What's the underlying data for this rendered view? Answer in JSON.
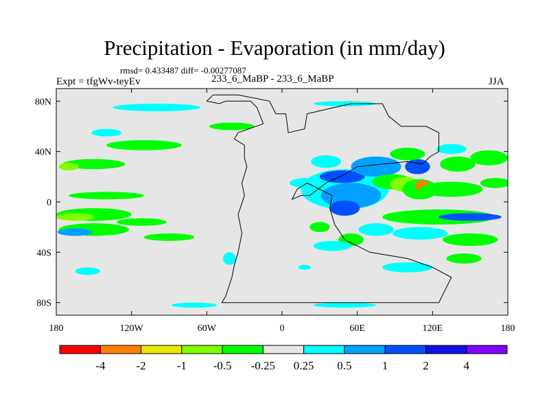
{
  "chart_data": {
    "type": "heatmap",
    "title": "Precipitation - Evaporation (in mm/day)",
    "stats_line": "rmsd= 0.433487 diff= -0.00277087",
    "left_label": "Expt = tfgWv-teyEv",
    "center_label": "233_6_MaBP - 233_6_MaBP",
    "right_label": "JJA",
    "x_range": [
      -180,
      180
    ],
    "y_range": [
      -90,
      90
    ],
    "x_ticks": [
      {
        "value": -180,
        "label": "180"
      },
      {
        "value": -120,
        "label": "120W"
      },
      {
        "value": -60,
        "label": "60W"
      },
      {
        "value": 0,
        "label": "0"
      },
      {
        "value": 60,
        "label": "60E"
      },
      {
        "value": 120,
        "label": "120E"
      },
      {
        "value": 180,
        "label": "180"
      }
    ],
    "y_ticks": [
      {
        "value": 80,
        "label": "80N"
      },
      {
        "value": 40,
        "label": "40N"
      },
      {
        "value": 0,
        "label": "0"
      },
      {
        "value": -40,
        "label": "40S"
      },
      {
        "value": -80,
        "label": "80S"
      }
    ],
    "background_color": "#e6e6e6",
    "colorbar": {
      "colors": [
        "#ff0000",
        "#ff8000",
        "#e6e600",
        "#80ff00",
        "#00ff00",
        "#e6e6e6",
        "#00ffff",
        "#00a0ff",
        "#0050ff",
        "#1010e0",
        "#8000ff"
      ],
      "labels": [
        "-4",
        "-2",
        "-1",
        "-0.5",
        "-0.25",
        "0.25",
        "0.5",
        "1",
        "2",
        "4"
      ]
    },
    "anomaly_regions": [
      {
        "lon": -150,
        "lat": -10,
        "rlon": 30,
        "rlat": 5,
        "color": "#00ff00"
      },
      {
        "lon": -165,
        "lat": -12,
        "rlon": 15,
        "rlat": 3,
        "color": "#80ff00"
      },
      {
        "lon": -150,
        "lat": -22,
        "rlon": 28,
        "rlat": 5,
        "color": "#00ff00"
      },
      {
        "lon": -165,
        "lat": -24,
        "rlon": 14,
        "rlat": 3,
        "color": "#00a0ff"
      },
      {
        "lon": -112,
        "lat": -16,
        "rlon": 20,
        "rlat": 3,
        "color": "#00ff00"
      },
      {
        "lon": -90,
        "lat": -28,
        "rlon": 20,
        "rlat": 3,
        "color": "#00ff00"
      },
      {
        "lon": -140,
        "lat": 5,
        "rlon": 30,
        "rlat": 3,
        "color": "#00ff00"
      },
      {
        "lon": -150,
        "lat": 30,
        "rlon": 25,
        "rlat": 4,
        "color": "#00ff00"
      },
      {
        "lon": -170,
        "lat": 28,
        "rlon": 8,
        "rlat": 3,
        "color": "#80ff00"
      },
      {
        "lon": -110,
        "lat": 45,
        "rlon": 30,
        "rlat": 4,
        "color": "#00ff00"
      },
      {
        "lon": -100,
        "lat": 75,
        "rlon": 35,
        "rlat": 3,
        "color": "#00ffff"
      },
      {
        "lon": -140,
        "lat": 55,
        "rlon": 12,
        "rlat": 3,
        "color": "#00ffff"
      },
      {
        "lon": -40,
        "lat": 60,
        "rlon": 18,
        "rlat": 3,
        "color": "#00ff00"
      },
      {
        "lon": 50,
        "lat": 78,
        "rlon": 25,
        "rlat": 2,
        "color": "#00ffff"
      },
      {
        "lon": -155,
        "lat": -55,
        "rlon": 10,
        "rlat": 3,
        "color": "#00ffff"
      },
      {
        "lon": -70,
        "lat": -82,
        "rlon": 18,
        "rlat": 2,
        "color": "#00ffff"
      },
      {
        "lon": 20,
        "lat": 15,
        "rlon": 14,
        "rlat": 4,
        "color": "#00ffff"
      },
      {
        "lon": 50,
        "lat": 10,
        "rlon": 35,
        "rlat": 16,
        "color": "#00ffff"
      },
      {
        "lon": 55,
        "lat": 5,
        "rlon": 24,
        "rlat": 10,
        "color": "#00a0ff"
      },
      {
        "lon": 50,
        "lat": -5,
        "rlon": 12,
        "rlat": 6,
        "color": "#0050ff"
      },
      {
        "lon": 48,
        "lat": 20,
        "rlon": 18,
        "rlat": 5,
        "color": "#0050ff"
      },
      {
        "lon": 35,
        "lat": 32,
        "rlon": 12,
        "rlat": 5,
        "color": "#00ffff"
      },
      {
        "lon": 75,
        "lat": 28,
        "rlon": 20,
        "rlat": 8,
        "color": "#00a0ff"
      },
      {
        "lon": 88,
        "lat": 16,
        "rlon": 16,
        "rlat": 6,
        "color": "#00ff00"
      },
      {
        "lon": 98,
        "lat": 14,
        "rlon": 12,
        "rlat": 6,
        "color": "#80ff00"
      },
      {
        "lon": 110,
        "lat": 10,
        "rlon": 14,
        "rlat": 8,
        "color": "#00ff00"
      },
      {
        "lon": 112,
        "lat": 13,
        "rlon": 6,
        "rlat": 4,
        "color": "#ff8000"
      },
      {
        "lon": 108,
        "lat": 28,
        "rlon": 10,
        "rlat": 6,
        "color": "#0050ff"
      },
      {
        "lon": 100,
        "lat": 38,
        "rlon": 14,
        "rlat": 5,
        "color": "#00ff00"
      },
      {
        "lon": 135,
        "lat": 10,
        "rlon": 25,
        "rlat": 6,
        "color": "#00ff00"
      },
      {
        "lon": 140,
        "lat": 30,
        "rlon": 14,
        "rlat": 6,
        "color": "#00ff00"
      },
      {
        "lon": 135,
        "lat": 42,
        "rlon": 12,
        "rlat": 4,
        "color": "#00ffff"
      },
      {
        "lon": 165,
        "lat": 35,
        "rlon": 15,
        "rlat": 6,
        "color": "#00ff00"
      },
      {
        "lon": 170,
        "lat": 15,
        "rlon": 12,
        "rlat": 4,
        "color": "#00ff00"
      },
      {
        "lon": 125,
        "lat": -12,
        "rlon": 45,
        "rlat": 6,
        "color": "#00ff00"
      },
      {
        "lon": 150,
        "lat": -12,
        "rlon": 25,
        "rlat": 3,
        "color": "#0050ff"
      },
      {
        "lon": 110,
        "lat": -25,
        "rlon": 22,
        "rlat": 5,
        "color": "#00ffff"
      },
      {
        "lon": 150,
        "lat": -30,
        "rlon": 22,
        "rlat": 5,
        "color": "#00ff00"
      },
      {
        "lon": 145,
        "lat": -45,
        "rlon": 14,
        "rlat": 4,
        "color": "#00ff00"
      },
      {
        "lon": 75,
        "lat": -22,
        "rlon": 14,
        "rlat": 5,
        "color": "#00ffff"
      },
      {
        "lon": 55,
        "lat": -30,
        "rlon": 10,
        "rlat": 5,
        "color": "#00ff00"
      },
      {
        "lon": 40,
        "lat": -35,
        "rlon": 15,
        "rlat": 4,
        "color": "#00ffff"
      },
      {
        "lon": 30,
        "lat": -20,
        "rlon": 8,
        "rlat": 4,
        "color": "#00ff00"
      },
      {
        "lon": 100,
        "lat": -52,
        "rlon": 20,
        "rlat": 4,
        "color": "#00ffff"
      },
      {
        "lon": 50,
        "lat": -82,
        "rlon": 25,
        "rlat": 2,
        "color": "#00ffff"
      },
      {
        "lon": -42,
        "lat": -45,
        "rlon": 5,
        "rlat": 5,
        "color": "#00ffff"
      },
      {
        "lon": 18,
        "lat": -52,
        "rlon": 5,
        "rlat": 2,
        "color": "#00ffff"
      }
    ],
    "coastline_outline": [
      [
        -60,
        80
      ],
      [
        -50,
        78
      ],
      [
        -45,
        80
      ],
      [
        -25,
        80
      ],
      [
        -20,
        75
      ],
      [
        -15,
        62
      ],
      [
        -35,
        55
      ],
      [
        -38,
        50
      ],
      [
        -30,
        45
      ],
      [
        -30,
        35
      ],
      [
        -28,
        28
      ],
      [
        -32,
        15
      ],
      [
        -30,
        5
      ],
      [
        -35,
        -10
      ],
      [
        -32,
        -25
      ],
      [
        -35,
        -40
      ],
      [
        -38,
        -50
      ],
      [
        -40,
        -60
      ],
      [
        -45,
        -75
      ],
      [
        -48,
        -80
      ],
      [
        125,
        -80
      ],
      [
        130,
        -70
      ],
      [
        135,
        -60
      ],
      [
        120,
        -52
      ],
      [
        100,
        -45
      ],
      [
        70,
        -40
      ],
      [
        50,
        -30
      ],
      [
        42,
        -18
      ],
      [
        38,
        -5
      ],
      [
        40,
        5
      ],
      [
        20,
        15
      ],
      [
        12,
        10
      ],
      [
        8,
        2
      ],
      [
        15,
        5
      ],
      [
        22,
        5
      ],
      [
        35,
        15
      ],
      [
        50,
        22
      ],
      [
        60,
        28
      ],
      [
        80,
        30
      ],
      [
        100,
        32
      ],
      [
        112,
        30
      ],
      [
        118,
        36
      ],
      [
        125,
        40
      ],
      [
        125,
        55
      ],
      [
        115,
        60
      ],
      [
        95,
        60
      ],
      [
        85,
        68
      ],
      [
        80,
        78
      ],
      [
        55,
        78
      ],
      [
        20,
        70
      ],
      [
        18,
        58
      ],
      [
        5,
        55
      ],
      [
        3,
        70
      ],
      [
        -5,
        70
      ],
      [
        -10,
        80
      ],
      [
        -35,
        85
      ],
      [
        -55,
        85
      ],
      [
        -60,
        80
      ]
    ]
  }
}
